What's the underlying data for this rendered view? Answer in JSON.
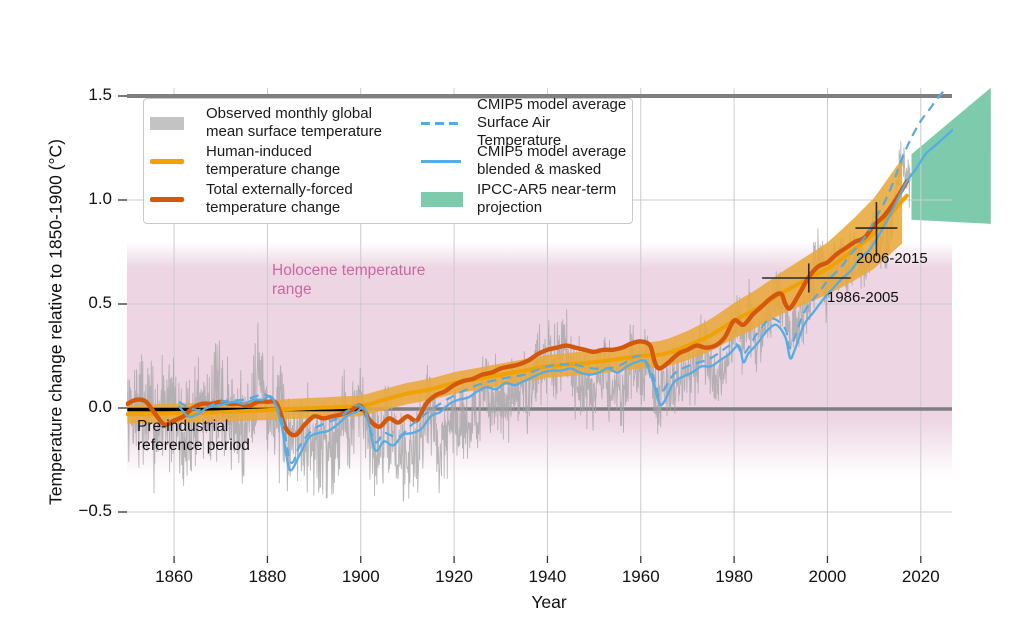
{
  "figure": {
    "y_axis_title": "Temperature change relative to 1850-1900 (°C)",
    "x_axis_title": "Year"
  },
  "legend": {
    "items": [
      {
        "label": "Observed monthly global\nmean surface temperature",
        "swatch": "gray-patch"
      },
      {
        "label": "Human-induced\ntemperature change",
        "swatch": "orange-line"
      },
      {
        "label": "Total externally-forced\ntemperature change",
        "swatch": "dark-orange-line"
      },
      {
        "label": "CMIP5 model average\nSurface Air Temperature",
        "swatch": "blue-dashed-line"
      },
      {
        "label": "CMIP5 model average\nblended & masked",
        "swatch": "blue-line"
      },
      {
        "label": "IPCC-AR5 near-term\nprojection",
        "swatch": "teal-patch"
      }
    ]
  },
  "annotations": {
    "holocene": "Holocene temperature\nrange",
    "preindustrial": "Pre-industrial\nreference period",
    "period_1986_2005": "1986-2005",
    "period_2006_2015": "2006-2015"
  },
  "chart_data": {
    "type": "line",
    "title": "",
    "xlabel": "Year",
    "ylabel": "Temperature change relative to 1850-1900 (°C)",
    "x_axis": {
      "min": 1850,
      "max": 2027,
      "ticks": [
        1860,
        1880,
        1900,
        1920,
        1940,
        1960,
        1980,
        2000,
        2020
      ]
    },
    "y_axis": {
      "min": -0.71,
      "max": 1.54,
      "ticks": [
        {
          "v": 1.5,
          "label": "1.5"
        },
        {
          "v": 1.0,
          "label": "1.0"
        },
        {
          "v": 0.5,
          "label": "0.5"
        },
        {
          "v": 0.0,
          "label": "0.0"
        },
        {
          "v": -0.5,
          "label": "−0.5"
        }
      ],
      "minor_gridlines": [
        1.0,
        0.5,
        -0.5
      ]
    },
    "reference_lines": {
      "zero": 0.0,
      "one_point_five": 1.5
    },
    "preindustrial_line": {
      "start_year": 1850,
      "end_year": 1901,
      "value": 0.0
    },
    "holocene_band": {
      "fade_top": 0.8,
      "solid_top": 0.67,
      "solid_bottom": -0.05,
      "fade_bottom": -0.33
    },
    "projection_wedge": {
      "points": [
        [
          2018,
          1.22
        ],
        [
          2035,
          1.54
        ],
        [
          2035,
          0.885
        ],
        [
          2018,
          0.905
        ]
      ]
    },
    "crosshairs": [
      {
        "label": "1986-2005",
        "years": [
          1986,
          2005
        ],
        "center_year": 1996,
        "mean": 0.625,
        "uncertainty": [
          0.555,
          0.695
        ]
      },
      {
        "label": "2006-2015",
        "years": [
          2006,
          2015
        ],
        "center_year": 2010.5,
        "mean": 0.865,
        "uncertainty": [
          0.73,
          0.99
        ]
      }
    ],
    "observed_annual": [
      [
        1850,
        -0.06
      ],
      [
        1852,
        0.01
      ],
      [
        1854,
        -0.02
      ],
      [
        1856,
        -0.08
      ],
      [
        1858,
        0.02
      ],
      [
        1860,
        -0.02
      ],
      [
        1862,
        -0.18
      ],
      [
        1864,
        -0.05
      ],
      [
        1866,
        0.02
      ],
      [
        1868,
        0.03
      ],
      [
        1870,
        0.02
      ],
      [
        1872,
        -0.04
      ],
      [
        1875,
        -0.12
      ],
      [
        1877,
        0.1
      ],
      [
        1878,
        0.22
      ],
      [
        1880,
        -0.02
      ],
      [
        1882,
        -0.02
      ],
      [
        1884,
        -0.14
      ],
      [
        1886,
        -0.12
      ],
      [
        1888,
        -0.08
      ],
      [
        1890,
        -0.2
      ],
      [
        1892,
        -0.18
      ],
      [
        1894,
        -0.18
      ],
      [
        1896,
        -0.02
      ],
      [
        1898,
        -0.08
      ],
      [
        1900,
        0.02
      ],
      [
        1902,
        -0.12
      ],
      [
        1904,
        -0.2
      ],
      [
        1906,
        -0.1
      ],
      [
        1908,
        -0.22
      ],
      [
        1910,
        -0.22
      ],
      [
        1912,
        -0.2
      ],
      [
        1914,
        -0.02
      ],
      [
        1915,
        0.02
      ],
      [
        1917,
        -0.22
      ],
      [
        1919,
        -0.08
      ],
      [
        1921,
        -0.04
      ],
      [
        1923,
        -0.06
      ],
      [
        1925,
        -0.02
      ],
      [
        1926,
        0.08
      ],
      [
        1928,
        0.02
      ],
      [
        1930,
        0.06
      ],
      [
        1932,
        0.04
      ],
      [
        1934,
        0.08
      ],
      [
        1936,
        0.1
      ],
      [
        1938,
        0.2
      ],
      [
        1940,
        0.22
      ],
      [
        1942,
        0.22
      ],
      [
        1944,
        0.33
      ],
      [
        1946,
        0.15
      ],
      [
        1948,
        0.12
      ],
      [
        1950,
        0.05
      ],
      [
        1952,
        0.18
      ],
      [
        1954,
        0.1
      ],
      [
        1956,
        0.05
      ],
      [
        1958,
        0.22
      ],
      [
        1960,
        0.18
      ],
      [
        1962,
        0.22
      ],
      [
        1964,
        0.02
      ],
      [
        1966,
        0.12
      ],
      [
        1968,
        0.1
      ],
      [
        1970,
        0.2
      ],
      [
        1972,
        0.15
      ],
      [
        1973,
        0.3
      ],
      [
        1975,
        0.18
      ],
      [
        1976,
        0.08
      ],
      [
        1978,
        0.2
      ],
      [
        1980,
        0.38
      ],
      [
        1981,
        0.42
      ],
      [
        1982,
        0.28
      ],
      [
        1983,
        0.45
      ],
      [
        1985,
        0.28
      ],
      [
        1987,
        0.45
      ],
      [
        1988,
        0.48
      ],
      [
        1990,
        0.55
      ],
      [
        1992,
        0.35
      ],
      [
        1994,
        0.42
      ],
      [
        1996,
        0.48
      ],
      [
        1998,
        0.75
      ],
      [
        2000,
        0.55
      ],
      [
        2002,
        0.7
      ],
      [
        2004,
        0.68
      ],
      [
        2006,
        0.75
      ],
      [
        2008,
        0.65
      ],
      [
        2010,
        0.85
      ],
      [
        2012,
        0.78
      ],
      [
        2014,
        0.92
      ],
      [
        2015,
        1.05
      ],
      [
        2016,
        1.22
      ],
      [
        2017,
        1.1
      ]
    ],
    "monthly_noise_amplitude": [
      [
        1850,
        0.17
      ],
      [
        1875,
        0.16
      ],
      [
        1900,
        0.14
      ],
      [
        1925,
        0.12
      ],
      [
        1950,
        0.11
      ],
      [
        1975,
        0.095
      ],
      [
        2000,
        0.085
      ],
      [
        2017,
        0.08
      ]
    ],
    "human_induced": [
      [
        1850,
        -0.03
      ],
      [
        1860,
        -0.025
      ],
      [
        1870,
        -0.02
      ],
      [
        1880,
        -0.01
      ],
      [
        1890,
        0.0
      ],
      [
        1900,
        0.01
      ],
      [
        1905,
        0.04
      ],
      [
        1910,
        0.07
      ],
      [
        1915,
        0.09
      ],
      [
        1920,
        0.12
      ],
      [
        1925,
        0.14
      ],
      [
        1930,
        0.16
      ],
      [
        1935,
        0.18
      ],
      [
        1940,
        0.2
      ],
      [
        1945,
        0.21
      ],
      [
        1950,
        0.22
      ],
      [
        1955,
        0.235
      ],
      [
        1960,
        0.25
      ],
      [
        1965,
        0.26
      ],
      [
        1970,
        0.3
      ],
      [
        1975,
        0.35
      ],
      [
        1980,
        0.42
      ],
      [
        1985,
        0.48
      ],
      [
        1990,
        0.55
      ],
      [
        1995,
        0.61
      ],
      [
        2000,
        0.67
      ],
      [
        2005,
        0.75
      ],
      [
        2010,
        0.84
      ],
      [
        2015,
        0.97
      ],
      [
        2017,
        1.02
      ]
    ],
    "human_band_halfwidth": [
      [
        1850,
        0.045
      ],
      [
        1900,
        0.05
      ],
      [
        1940,
        0.055
      ],
      [
        1960,
        0.06
      ],
      [
        1970,
        0.07
      ],
      [
        1980,
        0.085
      ],
      [
        1990,
        0.1
      ],
      [
        2000,
        0.125
      ],
      [
        2010,
        0.17
      ],
      [
        2017,
        0.21
      ]
    ],
    "total_forced": [
      [
        1850,
        0.02
      ],
      [
        1852,
        0.04
      ],
      [
        1854,
        0.03
      ],
      [
        1856,
        -0.03
      ],
      [
        1858,
        -0.08
      ],
      [
        1860,
        -0.06
      ],
      [
        1862,
        -0.04
      ],
      [
        1864,
        0.0
      ],
      [
        1866,
        0.02
      ],
      [
        1868,
        0.02
      ],
      [
        1870,
        0.03
      ],
      [
        1872,
        0.02
      ],
      [
        1874,
        0.02
      ],
      [
        1876,
        0.01
      ],
      [
        1878,
        0.03
      ],
      [
        1880,
        0.03
      ],
      [
        1882,
        0.02
      ],
      [
        1884,
        -0.1
      ],
      [
        1886,
        -0.13
      ],
      [
        1888,
        -0.08
      ],
      [
        1890,
        -0.04
      ],
      [
        1892,
        -0.05
      ],
      [
        1894,
        -0.04
      ],
      [
        1896,
        -0.03
      ],
      [
        1898,
        -0.01
      ],
      [
        1900,
        0.01
      ],
      [
        1902,
        -0.06
      ],
      [
        1904,
        -0.09
      ],
      [
        1906,
        -0.05
      ],
      [
        1908,
        -0.07
      ],
      [
        1910,
        -0.04
      ],
      [
        1912,
        -0.06
      ],
      [
        1914,
        0.02
      ],
      [
        1916,
        0.06
      ],
      [
        1918,
        0.08
      ],
      [
        1920,
        0.11
      ],
      [
        1922,
        0.13
      ],
      [
        1924,
        0.14
      ],
      [
        1926,
        0.16
      ],
      [
        1928,
        0.17
      ],
      [
        1930,
        0.19
      ],
      [
        1932,
        0.2
      ],
      [
        1934,
        0.21
      ],
      [
        1936,
        0.23
      ],
      [
        1938,
        0.26
      ],
      [
        1940,
        0.28
      ],
      [
        1942,
        0.29
      ],
      [
        1944,
        0.3
      ],
      [
        1946,
        0.29
      ],
      [
        1948,
        0.28
      ],
      [
        1950,
        0.27
      ],
      [
        1952,
        0.28
      ],
      [
        1954,
        0.28
      ],
      [
        1956,
        0.29
      ],
      [
        1958,
        0.31
      ],
      [
        1960,
        0.32
      ],
      [
        1962,
        0.3
      ],
      [
        1963,
        0.22
      ],
      [
        1964,
        0.19
      ],
      [
        1966,
        0.22
      ],
      [
        1968,
        0.26
      ],
      [
        1970,
        0.28
      ],
      [
        1972,
        0.3
      ],
      [
        1974,
        0.29
      ],
      [
        1976,
        0.3
      ],
      [
        1978,
        0.34
      ],
      [
        1980,
        0.42
      ],
      [
        1982,
        0.4
      ],
      [
        1984,
        0.45
      ],
      [
        1986,
        0.49
      ],
      [
        1988,
        0.53
      ],
      [
        1990,
        0.55
      ],
      [
        1991,
        0.5
      ],
      [
        1992,
        0.48
      ],
      [
        1994,
        0.55
      ],
      [
        1996,
        0.63
      ],
      [
        1998,
        0.68
      ],
      [
        2000,
        0.7
      ],
      [
        2002,
        0.74
      ],
      [
        2004,
        0.77
      ],
      [
        2006,
        0.8
      ],
      [
        2008,
        0.82
      ],
      [
        2010,
        0.88
      ],
      [
        2012,
        0.92
      ],
      [
        2014,
        0.98
      ],
      [
        2016,
        1.05
      ],
      [
        2017,
        1.09
      ]
    ],
    "cmip5_blended": [
      [
        1861,
        0.01
      ],
      [
        1863,
        -0.04
      ],
      [
        1865,
        -0.03
      ],
      [
        1867,
        0.0
      ],
      [
        1869,
        0.01
      ],
      [
        1871,
        0.02
      ],
      [
        1873,
        0.03
      ],
      [
        1875,
        0.02
      ],
      [
        1877,
        0.04
      ],
      [
        1879,
        0.04
      ],
      [
        1881,
        0.05
      ],
      [
        1883,
        -0.08
      ],
      [
        1884,
        -0.22
      ],
      [
        1885,
        -0.3
      ],
      [
        1887,
        -0.22
      ],
      [
        1889,
        -0.14
      ],
      [
        1891,
        -0.12
      ],
      [
        1893,
        -0.11
      ],
      [
        1895,
        -0.08
      ],
      [
        1897,
        -0.04
      ],
      [
        1899,
        -0.02
      ],
      [
        1901,
        -0.01
      ],
      [
        1903,
        -0.2
      ],
      [
        1905,
        -0.16
      ],
      [
        1907,
        -0.18
      ],
      [
        1909,
        -0.13
      ],
      [
        1911,
        -0.12
      ],
      [
        1913,
        -0.1
      ],
      [
        1915,
        -0.04
      ],
      [
        1917,
        -0.02
      ],
      [
        1919,
        0.02
      ],
      [
        1921,
        0.04
      ],
      [
        1923,
        0.05
      ],
      [
        1925,
        0.08
      ],
      [
        1927,
        0.1
      ],
      [
        1929,
        0.09
      ],
      [
        1931,
        0.12
      ],
      [
        1933,
        0.11
      ],
      [
        1935,
        0.13
      ],
      [
        1937,
        0.15
      ],
      [
        1939,
        0.17
      ],
      [
        1941,
        0.18
      ],
      [
        1943,
        0.18
      ],
      [
        1945,
        0.19
      ],
      [
        1947,
        0.17
      ],
      [
        1949,
        0.16
      ],
      [
        1951,
        0.17
      ],
      [
        1953,
        0.19
      ],
      [
        1955,
        0.17
      ],
      [
        1957,
        0.2
      ],
      [
        1959,
        0.22
      ],
      [
        1961,
        0.22
      ],
      [
        1963,
        0.1
      ],
      [
        1964,
        0.02
      ],
      [
        1965,
        0.03
      ],
      [
        1967,
        0.12
      ],
      [
        1969,
        0.15
      ],
      [
        1971,
        0.17
      ],
      [
        1973,
        0.2
      ],
      [
        1975,
        0.2
      ],
      [
        1977,
        0.23
      ],
      [
        1979,
        0.26
      ],
      [
        1981,
        0.3
      ],
      [
        1982,
        0.22
      ],
      [
        1983,
        0.26
      ],
      [
        1985,
        0.31
      ],
      [
        1987,
        0.37
      ],
      [
        1989,
        0.4
      ],
      [
        1991,
        0.34
      ],
      [
        1992,
        0.24
      ],
      [
        1993,
        0.28
      ],
      [
        1995,
        0.4
      ],
      [
        1997,
        0.46
      ],
      [
        1999,
        0.52
      ],
      [
        2001,
        0.57
      ],
      [
        2003,
        0.62
      ],
      [
        2005,
        0.66
      ],
      [
        2007,
        0.72
      ],
      [
        2009,
        0.76
      ],
      [
        2011,
        0.83
      ],
      [
        2013,
        0.91
      ],
      [
        2015,
        1.0
      ],
      [
        2017,
        1.09
      ],
      [
        2019,
        1.15
      ],
      [
        2021,
        1.22
      ],
      [
        2023,
        1.26
      ],
      [
        2025,
        1.3
      ],
      [
        2027,
        1.34
      ]
    ],
    "cmip5_sat": [
      [
        1861,
        0.03
      ],
      [
        1865,
        -0.01
      ],
      [
        1870,
        0.03
      ],
      [
        1875,
        0.04
      ],
      [
        1880,
        0.06
      ],
      [
        1883,
        -0.05
      ],
      [
        1885,
        -0.26
      ],
      [
        1887,
        -0.18
      ],
      [
        1890,
        -0.1
      ],
      [
        1895,
        -0.05
      ],
      [
        1900,
        0.01
      ],
      [
        1903,
        -0.16
      ],
      [
        1905,
        -0.12
      ],
      [
        1908,
        -0.14
      ],
      [
        1911,
        -0.08
      ],
      [
        1915,
        -0.01
      ],
      [
        1920,
        0.06
      ],
      [
        1925,
        0.11
      ],
      [
        1930,
        0.14
      ],
      [
        1935,
        0.16
      ],
      [
        1940,
        0.2
      ],
      [
        1945,
        0.21
      ],
      [
        1950,
        0.19
      ],
      [
        1955,
        0.2
      ],
      [
        1960,
        0.25
      ],
      [
        1963,
        0.13
      ],
      [
        1964,
        0.06
      ],
      [
        1967,
        0.16
      ],
      [
        1970,
        0.2
      ],
      [
        1975,
        0.24
      ],
      [
        1980,
        0.31
      ],
      [
        1982,
        0.26
      ],
      [
        1985,
        0.36
      ],
      [
        1988,
        0.43
      ],
      [
        1991,
        0.38
      ],
      [
        1992,
        0.29
      ],
      [
        1995,
        0.46
      ],
      [
        1998,
        0.55
      ],
      [
        2000,
        0.61
      ],
      [
        2003,
        0.68
      ],
      [
        2005,
        0.74
      ],
      [
        2008,
        0.82
      ],
      [
        2010,
        0.9
      ],
      [
        2012,
        0.98
      ],
      [
        2014,
        1.08
      ],
      [
        2016,
        1.2
      ],
      [
        2018,
        1.3
      ],
      [
        2020,
        1.38
      ],
      [
        2022,
        1.44
      ],
      [
        2024,
        1.5
      ],
      [
        2026,
        1.55
      ]
    ],
    "colors": {
      "observed_line": "#a5a5a5",
      "observed_patch": "#c3c3c3",
      "human_induced": "#f0a202",
      "uncertainty_band": "#e9a83b",
      "total_forced": "#d4580c",
      "cmip5_sat": "#58a9e0",
      "cmip5_blended": "#56ace4",
      "projection": "#7ecaad",
      "holocene_band": "#edd5e3",
      "holocene_text": "#c8699f",
      "reference_line": "#7f7f7f",
      "gridline": "#cccccc",
      "crosshair": "#2a2a2a",
      "preindustrial_line": "#000000"
    }
  }
}
